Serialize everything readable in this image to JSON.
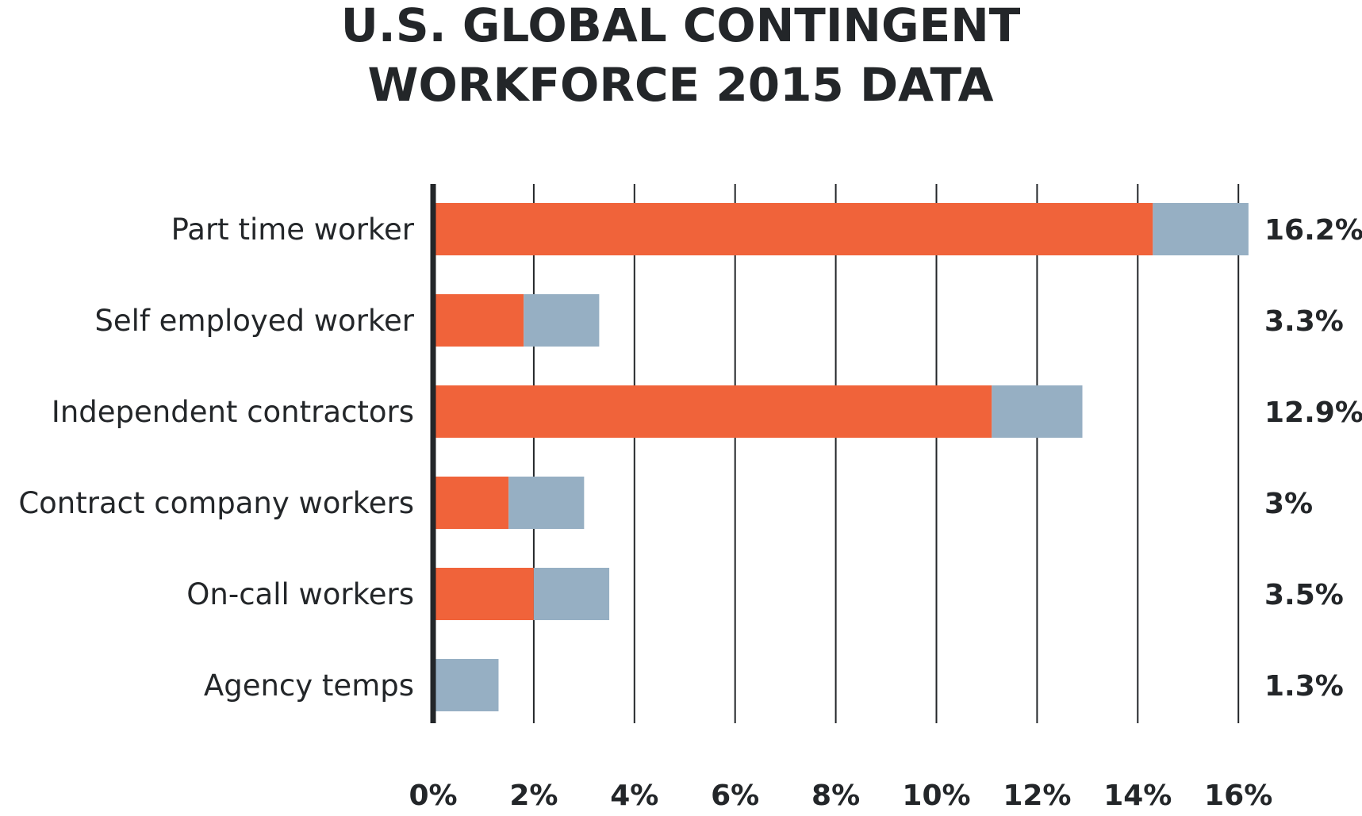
{
  "chart_data": {
    "type": "bar",
    "orientation": "horizontal",
    "stacked": true,
    "title_lines": [
      "U.S. GLOBAL CONTINGENT",
      "WORKFORCE 2015 DATA"
    ],
    "categories": [
      "Part time worker",
      "Self employed worker",
      "Independent contractors",
      "Contract company workers",
      "On-call workers",
      "Agency temps"
    ],
    "series": [
      {
        "name": "orange segment",
        "color": "#f0633a",
        "values": [
          14.3,
          1.8,
          11.1,
          1.5,
          2.0,
          0.0
        ]
      },
      {
        "name": "blue segment",
        "color": "#96afc3",
        "values": [
          1.9,
          1.5,
          1.8,
          1.5,
          1.5,
          1.3
        ]
      }
    ],
    "totals": [
      16.2,
      3.3,
      12.9,
      3.0,
      3.5,
      1.3
    ],
    "total_labels": [
      "16.2%",
      "3.3%",
      "12.9%",
      "3%",
      "3.5%",
      "1.3%"
    ],
    "x_ticks": [
      0,
      2,
      4,
      6,
      8,
      10,
      12,
      14,
      16
    ],
    "x_tick_labels": [
      "0%",
      "2%",
      "4%",
      "6%",
      "8%",
      "10%",
      "12%",
      "14%",
      "16%"
    ],
    "xlim": [
      0,
      16
    ],
    "xlabel": "",
    "ylabel": "",
    "grid": true,
    "legend": "none"
  }
}
